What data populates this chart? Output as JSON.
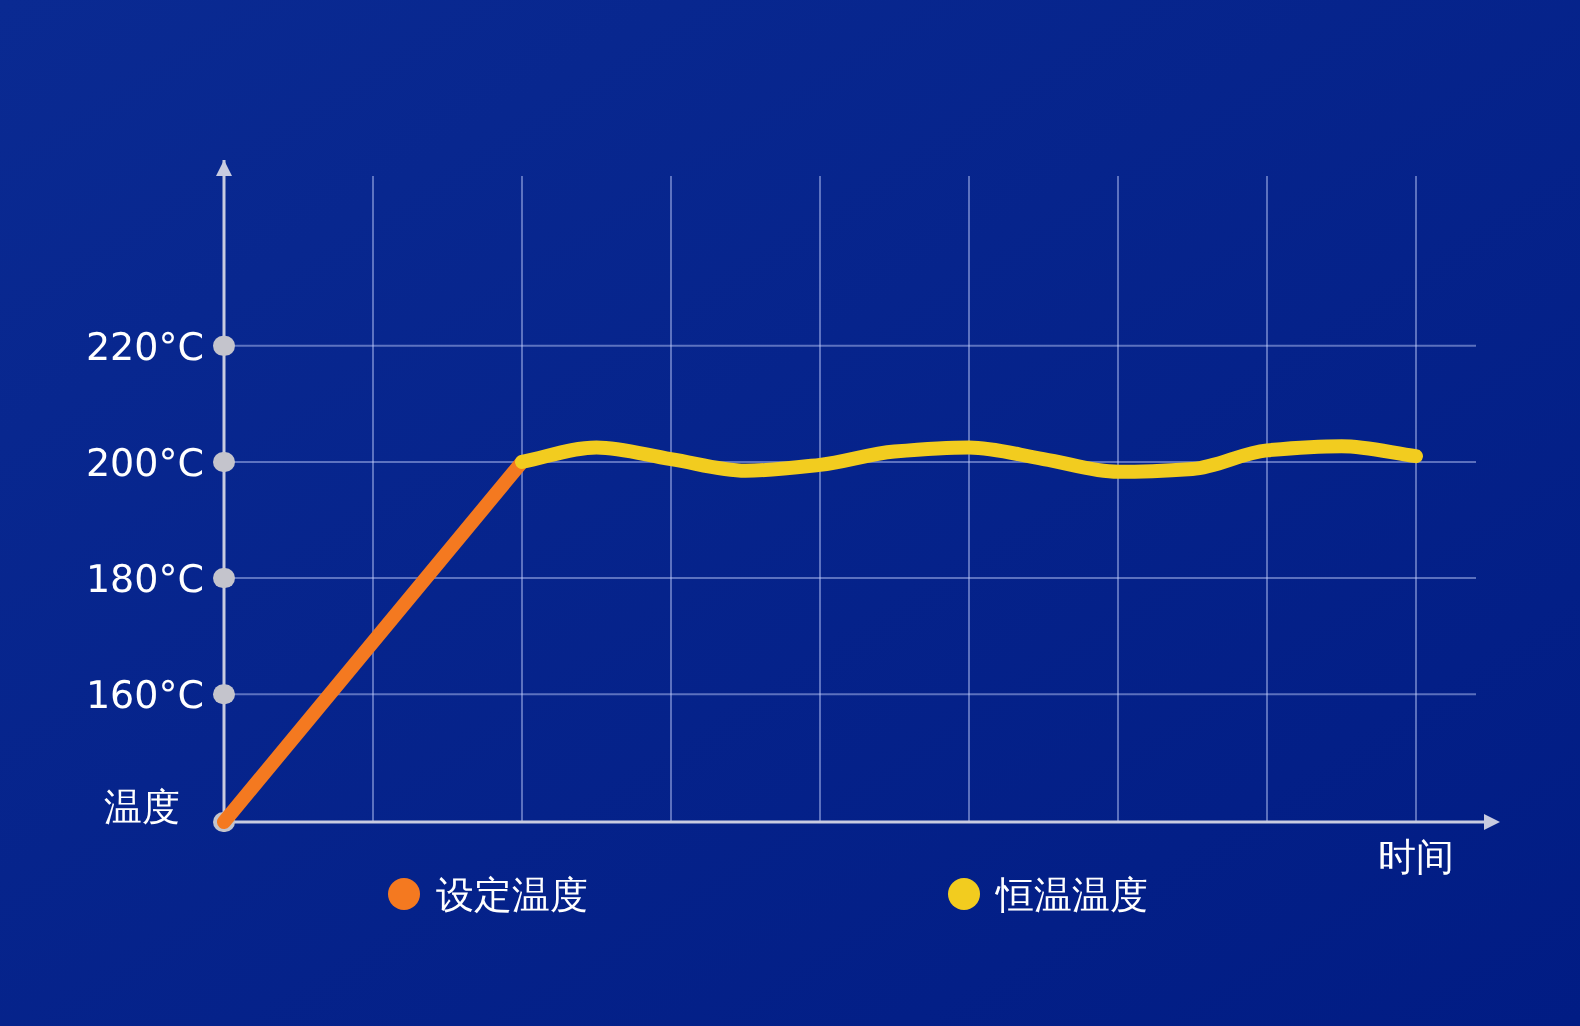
{
  "chart_data": {
    "type": "line",
    "xlabel": "时间",
    "ylabel": "温度",
    "categories": [
      null,
      null,
      null,
      null,
      null,
      null,
      null,
      null,
      null,
      null,
      null,
      null,
      null,
      null,
      null,
      null,
      null
    ],
    "series": [
      {
        "name": "设定温度",
        "color": "#f47920",
        "values": [
          138,
          153.5,
          169,
          184.5,
          200,
          null,
          null,
          null,
          null,
          null,
          null,
          null,
          null,
          null,
          null,
          null,
          null
        ]
      },
      {
        "name": "恒温温度",
        "color": "#f2cc1f",
        "values": [
          null,
          null,
          null,
          null,
          200,
          202.5,
          200.5,
          198.5,
          199.5,
          201.8,
          202.5,
          200.5,
          198.3,
          198.8,
          202,
          202.7,
          201
        ]
      }
    ],
    "ylim": [
      138,
      252
    ],
    "yticks": [
      {
        "value": 160,
        "label": "160°C"
      },
      {
        "value": 180,
        "label": "180°C"
      },
      {
        "value": 200,
        "label": "200°C"
      },
      {
        "value": 220,
        "label": "220°C"
      }
    ],
    "grid": true,
    "legend": "bottom",
    "marker": "none",
    "line_style": "solid"
  }
}
